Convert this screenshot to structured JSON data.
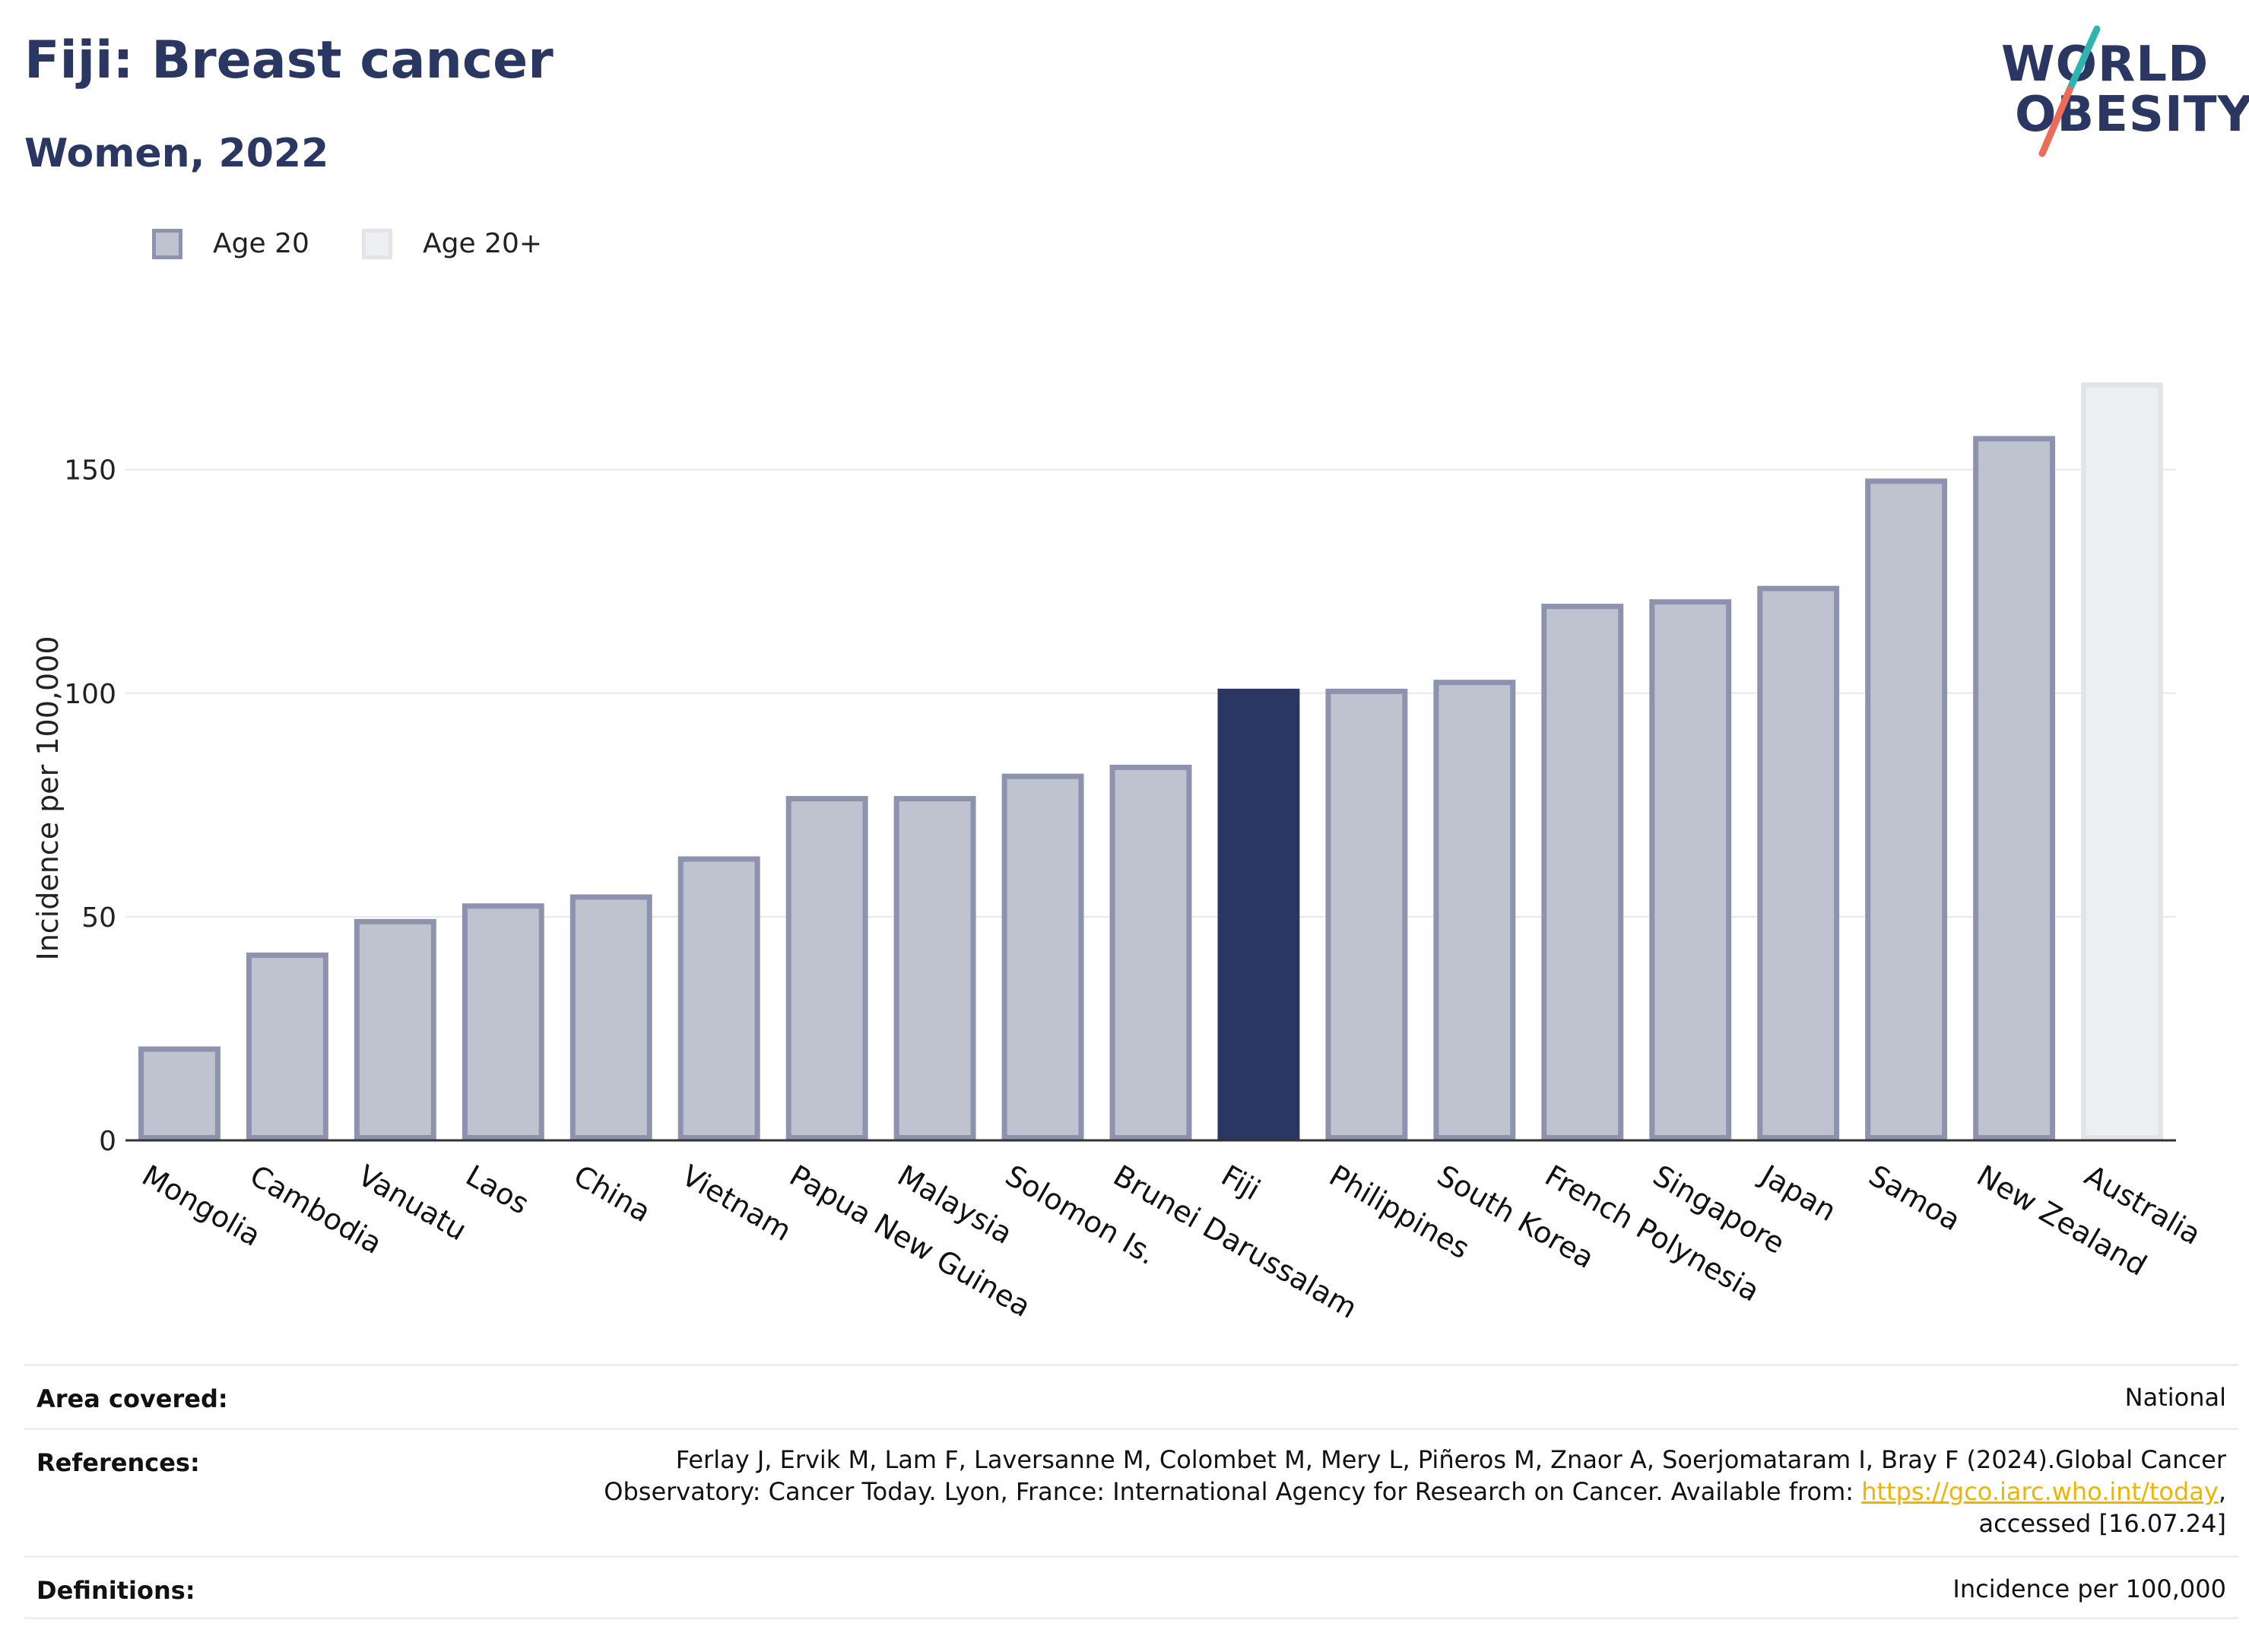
{
  "header": {
    "title": "Fiji: Breast cancer",
    "subtitle": "Women, 2022"
  },
  "logo": {
    "line1": "WORLD",
    "line2": "OBESITY"
  },
  "legend": {
    "items": [
      {
        "label": "Age 20"
      },
      {
        "label": "Age 20+"
      }
    ]
  },
  "colors": {
    "default_bar": "#bfc2cf",
    "default_bar_border": "#8d93ae",
    "highlight_bar": "#2b3763",
    "age20plus_bar": "#eeeff3",
    "age20plus_border": "#e3e4ea",
    "grid": "#e6e8ee",
    "axis": "#333333",
    "text_dark": "#2b3763",
    "link": "#f0b400",
    "logo_teal": "#2fb5b0",
    "logo_coral": "#ee6b5a"
  },
  "chart_data": {
    "type": "bar",
    "title": "Fiji: Breast cancer",
    "subtitle": "Women, 2022",
    "xlabel": "",
    "ylabel": "Incidence per 100,000",
    "ylim": [
      0,
      170
    ],
    "yticks": [
      0,
      50,
      100,
      150
    ],
    "grid": true,
    "legend_position": "top-left",
    "categories": [
      "Mongolia",
      "Cambodia",
      "Vanuatu",
      "Laos",
      "China",
      "Vietnam",
      "Papua New Guinea",
      "Malaysia",
      "Solomon Is.",
      "Brunei Darussalam",
      "Fiji",
      "Philippines",
      "South Korea",
      "French Polynesia",
      "Singapore",
      "Japan",
      "Samoa",
      "New Zealand",
      "Australia"
    ],
    "values": [
      21,
      42,
      49.5,
      53,
      55,
      63.5,
      77,
      77,
      82,
      84,
      101,
      101,
      103,
      120,
      121,
      124,
      148,
      157.5,
      169.5
    ],
    "series_membership": [
      "Age 20",
      "Age 20",
      "Age 20",
      "Age 20",
      "Age 20",
      "Age 20",
      "Age 20",
      "Age 20",
      "Age 20",
      "Age 20",
      "Age 20",
      "Age 20",
      "Age 20",
      "Age 20",
      "Age 20",
      "Age 20",
      "Age 20",
      "Age 20",
      "Age 20+"
    ],
    "highlight": "Fiji"
  },
  "footer": {
    "rows": [
      {
        "label": "Area covered:",
        "value": "National"
      },
      {
        "label": "References:",
        "value_before": "Ferlay J, Ervik M, Lam F, Laversanne M, Colombet M, Mery L, Piñeros M, Znaor A, Soerjomataram I, Bray F (2024).Global Cancer",
        "value_line2_before": "Observatory: Cancer Today. Lyon, France: International Agency for Research on Cancer. Available from: ",
        "link": "https://gco.iarc.who.int/today",
        "value_line2_after": ",",
        "value_line3": "accessed [16.07.24]"
      },
      {
        "label": "Definitions:",
        "value": "Incidence per 100,000"
      }
    ]
  }
}
